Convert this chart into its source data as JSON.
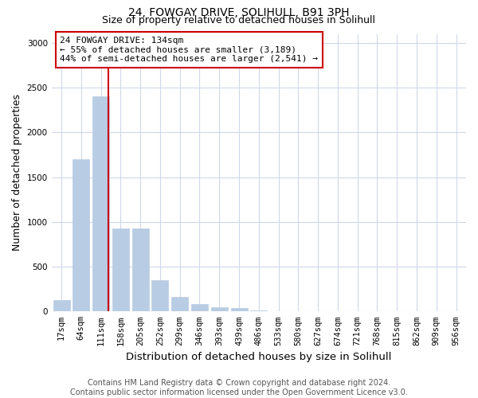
{
  "title1": "24, FOWGAY DRIVE, SOLIHULL, B91 3PH",
  "title2": "Size of property relative to detached houses in Solihull",
  "xlabel": "Distribution of detached houses by size in Solihull",
  "ylabel": "Number of detached properties",
  "categories": [
    "17sqm",
    "64sqm",
    "111sqm",
    "158sqm",
    "205sqm",
    "252sqm",
    "299sqm",
    "346sqm",
    "393sqm",
    "439sqm",
    "486sqm",
    "533sqm",
    "580sqm",
    "627sqm",
    "674sqm",
    "721sqm",
    "768sqm",
    "815sqm",
    "862sqm",
    "909sqm",
    "956sqm"
  ],
  "values": [
    130,
    1700,
    2400,
    930,
    930,
    350,
    160,
    80,
    50,
    40,
    10,
    5,
    5,
    3,
    2,
    2,
    1,
    1,
    1,
    1,
    1
  ],
  "bar_color": "#b8cce4",
  "bar_edgecolor": "#b8cce4",
  "grid_color": "#d0d8e8",
  "background_color": "#ffffff",
  "red_line_x": 2.38,
  "annotation_line1": "24 FOWGAY DRIVE: 134sqm",
  "annotation_line2": "← 55% of detached houses are smaller (3,189)",
  "annotation_line3": "44% of semi-detached houses are larger (2,541) →",
  "annotation_box_color": "#ffffff",
  "annotation_border_color": "#cc0000",
  "ylim": [
    0,
    3100
  ],
  "yticks": [
    0,
    500,
    1000,
    1500,
    2000,
    2500,
    3000
  ],
  "footer1": "Contains HM Land Registry data © Crown copyright and database right 2024.",
  "footer2": "Contains public sector information licensed under the Open Government Licence v3.0.",
  "title1_fontsize": 10,
  "title2_fontsize": 9,
  "axis_label_fontsize": 9,
  "tick_fontsize": 7.5,
  "annot_fontsize": 8,
  "footer_fontsize": 7
}
